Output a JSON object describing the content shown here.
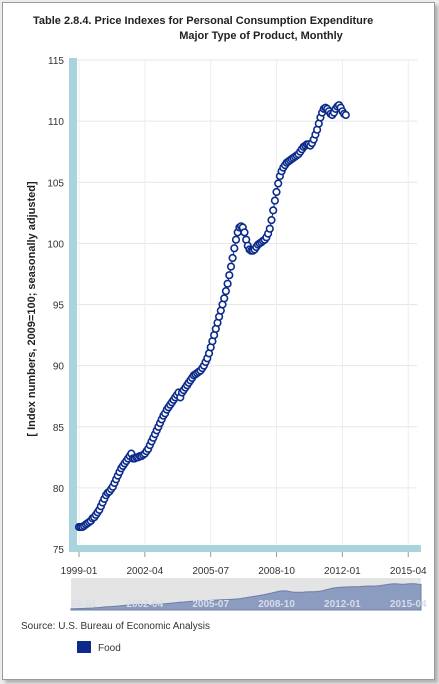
{
  "chart_data": {
    "type": "line",
    "title_line1": "Table 2.8.4. Price Indexes for Personal Consumption Expenditure",
    "title_line2": "Major Type of Product, Monthly",
    "ylabel": "[ Index numbers, 2009=100; seasonally adjusted]",
    "ylim": [
      75,
      115
    ],
    "yticks": [
      75,
      80,
      85,
      90,
      95,
      100,
      105,
      110,
      115
    ],
    "xticks": [
      "1999-01",
      "2002-04",
      "2005-07",
      "2008-10",
      "2012-01",
      "2015-04"
    ],
    "navigator_labels": [
      "99-01",
      "2002-04",
      "2005-07",
      "2008-10",
      "2012-01",
      "2015-04"
    ],
    "x_start": "1999-01",
    "grid": true,
    "series": [
      {
        "name": "Food",
        "color": "#0b2a8a",
        "marker": "open-circle",
        "values": [
          76.8,
          76.8,
          76.8,
          76.9,
          77.0,
          77.1,
          77.2,
          77.3,
          77.5,
          77.6,
          77.8,
          78.0,
          78.2,
          78.5,
          78.8,
          79.1,
          79.4,
          79.6,
          79.7,
          79.9,
          80.1,
          80.4,
          80.7,
          81.0,
          81.3,
          81.6,
          81.8,
          82.0,
          82.2,
          82.4,
          82.6,
          82.8,
          82.4,
          82.4,
          82.5,
          82.5,
          82.6,
          82.6,
          82.7,
          82.8,
          83.0,
          83.2,
          83.5,
          83.8,
          84.1,
          84.4,
          84.7,
          85.0,
          85.3,
          85.6,
          85.9,
          86.1,
          86.4,
          86.6,
          86.8,
          87.0,
          87.2,
          87.4,
          87.6,
          87.8,
          87.4,
          87.8,
          88.0,
          88.2,
          88.4,
          88.6,
          88.8,
          89.0,
          89.2,
          89.3,
          89.4,
          89.5,
          89.6,
          89.8,
          90.0,
          90.3,
          90.6,
          91.0,
          91.5,
          92.0,
          92.5,
          93.0,
          93.5,
          94.0,
          94.5,
          95.0,
          95.5,
          96.1,
          96.7,
          97.4,
          98.1,
          98.8,
          99.6,
          100.3,
          100.9,
          101.3,
          101.4,
          101.3,
          100.9,
          100.3,
          99.8,
          99.5,
          99.4,
          99.4,
          99.5,
          99.7,
          99.9,
          100.0,
          100.1,
          100.2,
          100.3,
          100.5,
          100.8,
          101.2,
          101.9,
          102.7,
          103.5,
          104.2,
          104.9,
          105.5,
          105.9,
          106.2,
          106.4,
          106.6,
          106.7,
          106.8,
          106.9,
          107.0,
          107.1,
          107.2,
          107.3,
          107.5,
          107.7,
          107.9,
          108.0,
          108.1,
          108.1,
          108.0,
          108.2,
          108.5,
          108.9,
          109.3,
          109.8,
          110.3,
          110.7,
          111.0,
          111.1,
          111.0,
          110.8,
          110.6,
          110.5,
          110.7,
          111.0,
          111.2,
          111.3,
          111.1,
          110.8,
          110.6,
          110.5
        ]
      }
    ]
  },
  "source": "Source: U.S. Bureau of Economic Analysis",
  "legend": [
    {
      "label": "Food",
      "color": "#0b2a8a"
    }
  ]
}
